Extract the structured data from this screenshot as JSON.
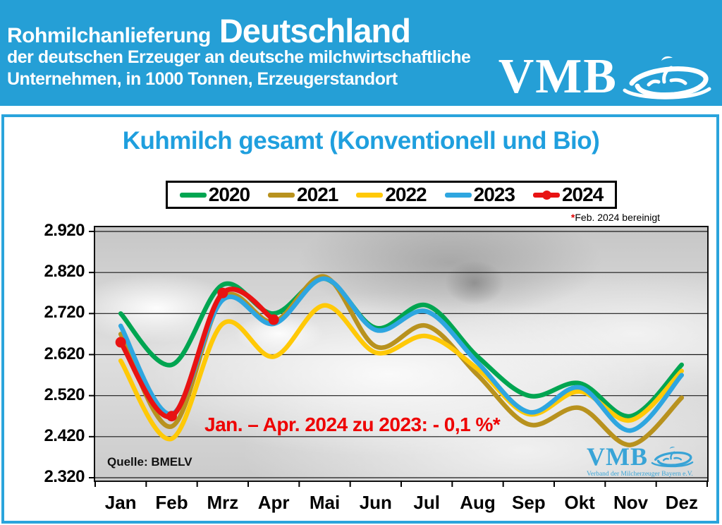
{
  "header": {
    "title_small": "Rohmilchanlieferung",
    "title_large": "Deutschland",
    "subtitle_line1": "der deutschen Erzeuger an deutsche milchwirtschaftliche",
    "subtitle_line2": "Unternehmen, in 1000 Tonnen, Erzeugerstandort",
    "logo_text": "VMB",
    "bg_color": "#259fd6"
  },
  "chart": {
    "title": "Kuhmilch gesamt (Konventionell und Bio)",
    "footnote_star": "*",
    "footnote_text": "Feb. 2024 bereinigt",
    "annotation": "Jan. – Apr. 2024 zu 2023: - 0,1 %*",
    "source": "Quelle: BMELV",
    "watermark_text": "VMB",
    "watermark_subtext": "Verband der Milcherzeuger Bayern e.V."
  },
  "chart_data": {
    "type": "line",
    "title": "Kuhmilch gesamt (Konventionell und Bio)",
    "xlabel": "",
    "ylabel": "1000 Tonnen",
    "categories": [
      "Jan",
      "Feb",
      "Mrz",
      "Apr",
      "Mai",
      "Jun",
      "Jul",
      "Aug",
      "Sep",
      "Okt",
      "Nov",
      "Dez"
    ],
    "y_tick_labels": [
      "2.920",
      "2.820",
      "2.720",
      "2.620",
      "2.520",
      "2.420",
      "2.320"
    ],
    "y_tick_values": [
      2920,
      2820,
      2720,
      2620,
      2520,
      2420,
      2320
    ],
    "ylim": [
      2320,
      2920
    ],
    "grid": true,
    "legend_position": "top",
    "series": [
      {
        "name": "2020",
        "color": "#00a551",
        "marker": false,
        "values": [
          2720,
          2595,
          2790,
          2720,
          2805,
          2685,
          2740,
          2615,
          2520,
          2550,
          2470,
          2595
        ]
      },
      {
        "name": "2021",
        "color": "#b8921e",
        "marker": false,
        "values": [
          2670,
          2445,
          2757,
          2700,
          2810,
          2640,
          2690,
          2570,
          2450,
          2490,
          2400,
          2515
        ]
      },
      {
        "name": "2022",
        "color": "#ffc907",
        "marker": false,
        "values": [
          2605,
          2415,
          2695,
          2615,
          2740,
          2625,
          2665,
          2585,
          2475,
          2530,
          2460,
          2580
        ]
      },
      {
        "name": "2023",
        "color": "#2ea6e0",
        "marker": false,
        "values": [
          2690,
          2475,
          2753,
          2695,
          2805,
          2680,
          2725,
          2600,
          2480,
          2540,
          2435,
          2570
        ]
      },
      {
        "name": "2024",
        "color": "#e81313",
        "marker": true,
        "values": [
          2650,
          2470,
          2770,
          2705
        ]
      }
    ]
  }
}
